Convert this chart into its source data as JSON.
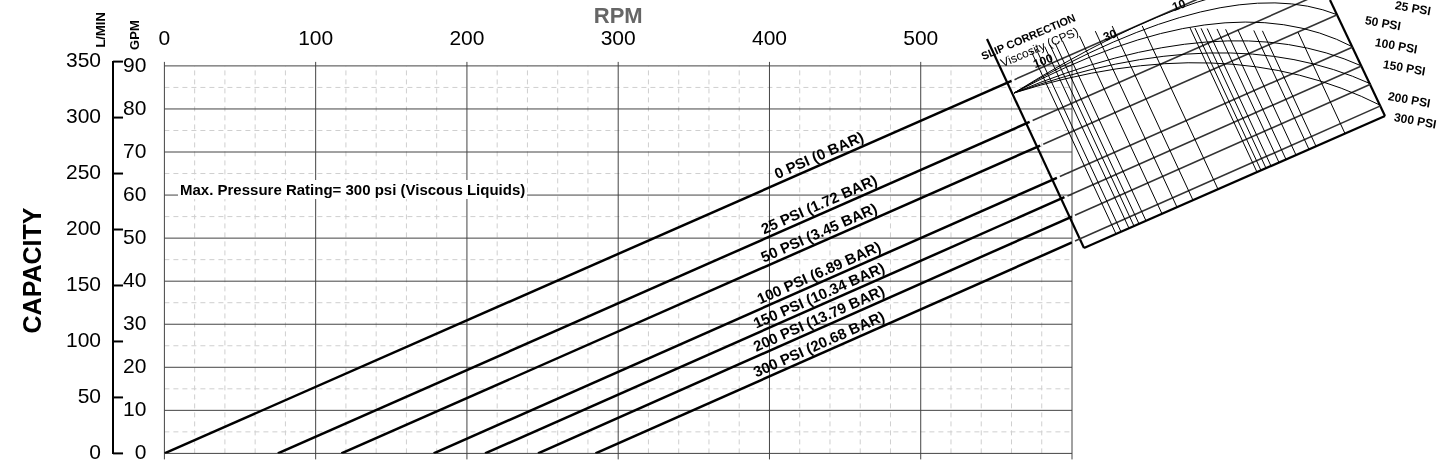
{
  "chart_data": {
    "type": "line",
    "xlabel": "RPM",
    "ylabel": "GPM",
    "y2label": "L/MIN",
    "xlim": [
      0,
      600
    ],
    "xticks": [
      0,
      100,
      200,
      300,
      400,
      500,
      {
        "value": 600,
        "label": null
      }
    ],
    "ylim": [
      0,
      91
    ],
    "yticks": [
      0,
      10,
      20,
      30,
      40,
      50,
      60,
      70,
      80,
      90
    ],
    "y2lim": [
      0,
      350
    ],
    "y2ticks": [
      0,
      50,
      100,
      150,
      200,
      250,
      300,
      350
    ],
    "grid": true,
    "legend": false,
    "marker": "none",
    "line_style": "solid",
    "series": [
      {
        "name": "0 PSI (0 BAR)",
        "color": "#000000",
        "x": [
          0,
          560
        ],
        "values": [
          0,
          86.5
        ]
      },
      {
        "name": "25 PSI (1.72 BAR)",
        "color": "#000000",
        "x": [
          75,
          572
        ],
        "values": [
          0,
          77
        ]
      },
      {
        "name": "50 PSI (3.45 BAR)",
        "color": "#000000",
        "x": [
          117,
          579
        ],
        "values": [
          0,
          71.5
        ]
      },
      {
        "name": "100 PSI (6.89 BAR)",
        "color": "#000000",
        "x": [
          178,
          590
        ],
        "values": [
          0,
          64
        ]
      },
      {
        "name": "150 PSI (10.34 BAR)",
        "color": "#000000",
        "x": [
          212,
          595
        ],
        "values": [
          0,
          59.5
        ]
      },
      {
        "name": "200 PSI (13.79 BAR)",
        "color": "#000000",
        "x": [
          247,
          600
        ],
        "values": [
          0,
          55
        ]
      },
      {
        "name": "300 PSI (20.68 BAR)",
        "color": "#000000",
        "x": [
          285,
          600
        ],
        "values": [
          0,
          49
        ]
      }
    ],
    "annotations": [
      "Max. Pressure Rating= 300 psi (Viscous Liquids)",
      "CAPACITY",
      "SLIP CORRECTION",
      "Viscosity (CPS)",
      "100",
      "30",
      "10",
      "25 PSI",
      "50 PSI",
      "100 PSI",
      "150 PSI",
      "200 PSI",
      "300 PSI"
    ]
  }
}
